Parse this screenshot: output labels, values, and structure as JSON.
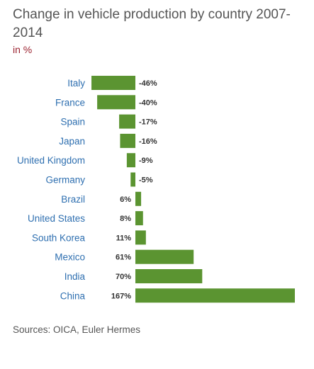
{
  "title": "Change in vehicle production by country 2007-2014",
  "subtitle": "in %",
  "source": "Sources: OICA, Euler Hermes",
  "colors": {
    "bar": "#5b9431",
    "category_label": "#2e6fb0",
    "value_label": "#333333",
    "subtitle": "#9b2330"
  },
  "chart_data": {
    "type": "bar",
    "orientation": "horizontal",
    "title": "Change in vehicle production by country 2007-2014",
    "subtitle": "in %",
    "categories": [
      "Italy",
      "France",
      "Spain",
      "Japan",
      "United Kingdom",
      "Germany",
      "Brazil",
      "United States",
      "South Korea",
      "Mexico",
      "India",
      "China"
    ],
    "values": [
      -46,
      -40,
      -17,
      -16,
      -9,
      -5,
      6,
      8,
      11,
      61,
      70,
      167
    ],
    "value_labels": [
      "-46%",
      "-40%",
      "-17%",
      "-16%",
      "-9%",
      "-5%",
      "6%",
      "8%",
      "11%",
      "61%",
      "70%",
      "167%"
    ],
    "xlim": [
      -46,
      167
    ],
    "grid": false,
    "legend": "none"
  }
}
